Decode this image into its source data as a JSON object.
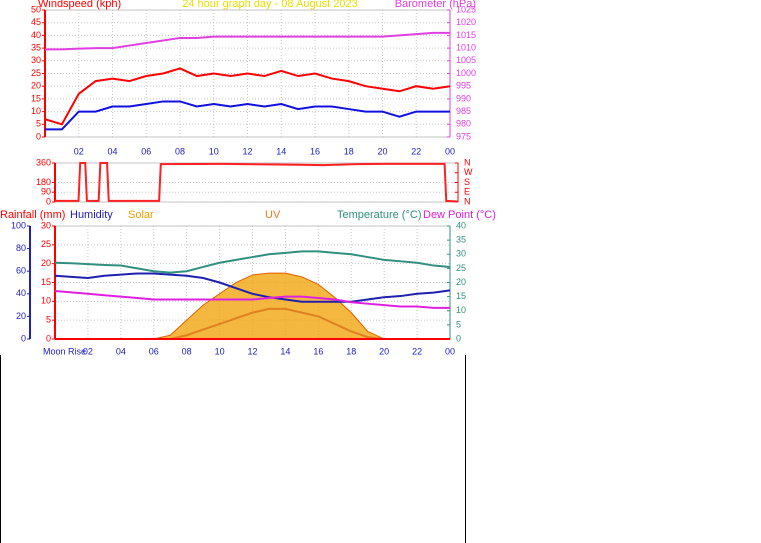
{
  "chart_data": [
    {
      "type": "line",
      "title": "24 hour graph day - 08 August 2023",
      "ylabel": "Windspeed (kph)",
      "y2label": "Barometer (hPa)",
      "ycolor": "#ff0000",
      "y2color": "#e040e0",
      "xcolor": "#2020c0",
      "grid": true,
      "x": [
        0,
        1,
        2,
        3,
        4,
        5,
        6,
        7,
        8,
        9,
        10,
        11,
        12,
        13,
        14,
        15,
        16,
        17,
        18,
        19,
        20,
        21,
        22,
        23,
        24
      ],
      "xlim": [
        0,
        24
      ],
      "xticks": [
        {
          "value": 2,
          "label": "02"
        },
        {
          "value": 4,
          "label": "04"
        },
        {
          "value": 6,
          "label": "06"
        },
        {
          "value": 8,
          "label": "08"
        },
        10,
        12,
        14,
        16,
        18,
        20,
        22,
        {
          "value": 24,
          "label": "00"
        }
      ],
      "ylim": [
        0,
        50
      ],
      "yticks": [
        0,
        5,
        10,
        15,
        20,
        25,
        30,
        35,
        40,
        45,
        50
      ],
      "y2lim": [
        975,
        1025
      ],
      "y2ticks": [
        975,
        980,
        985,
        990,
        995,
        1000,
        1005,
        1010,
        1015,
        1020,
        1025
      ],
      "series": [
        {
          "color": "#ff0000",
          "values": [
            7,
            5,
            17,
            22,
            23,
            22,
            24,
            25,
            27,
            24,
            25,
            24,
            25,
            24,
            26,
            24,
            25,
            23,
            22,
            20,
            19,
            18,
            20,
            19,
            20
          ]
        },
        {
          "color": "#1010e0",
          "values": [
            3,
            3,
            10,
            10,
            12,
            12,
            13,
            14,
            14,
            12,
            13,
            12,
            13,
            12,
            13,
            11,
            12,
            12,
            11,
            10,
            10,
            8,
            10,
            10,
            10
          ]
        },
        {
          "color": "#e040e0",
          "axis": "y2",
          "values": [
            1009.5,
            1009.5,
            1009.8,
            1010,
            1010,
            1011,
            1012,
            1013,
            1014,
            1014,
            1014.5,
            1014.5,
            1014.5,
            1014.5,
            1014.5,
            1014.5,
            1014.5,
            1014.5,
            1014.5,
            1014.5,
            1014.5,
            1015,
            1015.5,
            1016,
            1016
          ]
        }
      ]
    },
    {
      "type": "line",
      "ycolor": "#ff0000",
      "y2color": "#ff0000",
      "grid": true,
      "x": [
        0,
        1.4,
        1.5,
        1.8,
        1.9,
        2.6,
        2.7,
        3.1,
        3.2,
        6.2,
        6.3,
        10,
        14,
        16,
        18,
        20,
        23.2,
        23.3,
        24
      ],
      "xlim": [
        0,
        24
      ],
      "ylim": [
        0,
        360
      ],
      "yticks": [
        0,
        90,
        180,
        360
      ],
      "y2lim": [
        0,
        360
      ],
      "y2ticks": [
        {
          "value": 360,
          "label": "N"
        },
        {
          "value": 270,
          "label": "W"
        },
        {
          "value": 180,
          "label": "S"
        },
        {
          "value": 90,
          "label": "E"
        },
        {
          "value": 0,
          "label": "N"
        }
      ],
      "series": [
        {
          "color": "#ff2020",
          "values": [
            10,
            10,
            360,
            360,
            10,
            10,
            360,
            360,
            10,
            10,
            350,
            352,
            345,
            340,
            350,
            352,
            352,
            10,
            5
          ]
        }
      ]
    },
    {
      "type": "line",
      "annotation": "Moon Rise",
      "ycolor": "#ff0000",
      "y2color": "#309080",
      "y3color": "#2020c0",
      "xcolor": "#2020c0",
      "grid": true,
      "x": [
        0,
        1,
        2,
        3,
        4,
        5,
        6,
        7,
        8,
        9,
        10,
        11,
        12,
        13,
        14,
        15,
        16,
        17,
        18,
        19,
        20,
        21,
        22,
        23,
        24
      ],
      "xlim": [
        0,
        24
      ],
      "xticks": [
        {
          "value": 2,
          "label": "02"
        },
        {
          "value": 4,
          "label": "04"
        },
        {
          "value": 6,
          "label": "06"
        },
        {
          "value": 8,
          "label": "08"
        },
        10,
        12,
        14,
        16,
        18,
        20,
        22,
        {
          "value": 24,
          "label": "00"
        }
      ],
      "ylim": [
        0,
        30
      ],
      "yticks": [
        0,
        5,
        10,
        15,
        20,
        25,
        30
      ],
      "y2lim": [
        0,
        40
      ],
      "y2ticks": [
        0,
        5,
        10,
        15,
        20,
        25,
        30,
        35,
        40
      ],
      "y3lim": [
        0,
        100
      ],
      "y3ticks": [
        0,
        20,
        40,
        60,
        80,
        100
      ],
      "series": [
        {
          "name": "Solar",
          "color": "#f0a000",
          "fill": true,
          "values": [
            0,
            0,
            0,
            0,
            0,
            0,
            0,
            1,
            5,
            9,
            12,
            15,
            17,
            17.5,
            17.5,
            16.5,
            14.5,
            11,
            7,
            2,
            0,
            0,
            0,
            0,
            0
          ]
        },
        {
          "name": "UV",
          "color": "#e08020",
          "values": [
            0,
            0,
            0,
            0,
            0,
            0,
            0,
            0,
            1,
            2.5,
            4,
            5.5,
            7,
            8,
            8,
            7,
            6,
            4,
            2,
            0.5,
            0,
            0,
            0,
            0,
            0
          ]
        },
        {
          "name": "Rainfall (mm)",
          "color": "#ff0000",
          "values": [
            0,
            0,
            0,
            0,
            0,
            0,
            0,
            0,
            0,
            0,
            0,
            0,
            0,
            0,
            0,
            0,
            0,
            0,
            0,
            0,
            0,
            0,
            0,
            0,
            0
          ]
        },
        {
          "name": "Humidity",
          "color": "#2020b0",
          "axis": "y3",
          "values": [
            56,
            55,
            54,
            56,
            57,
            58,
            58,
            57,
            56,
            54,
            50,
            45,
            40,
            37,
            35,
            33,
            33,
            33,
            33,
            35,
            37,
            38,
            40,
            41,
            43
          ]
        },
        {
          "name": "Temperature (°C)",
          "color": "#309080",
          "axis": "y2",
          "values": [
            27,
            26.8,
            26.5,
            26.2,
            26,
            25,
            24,
            23.5,
            24,
            25.5,
            27,
            28,
            29,
            30,
            30.5,
            31,
            31,
            30.5,
            30,
            29,
            28,
            27.5,
            27,
            26,
            25.5
          ]
        },
        {
          "name": "Dew Point (°C)",
          "color": "#e020e0",
          "axis": "y2",
          "values": [
            17,
            16.5,
            16,
            15.5,
            15,
            14.5,
            14,
            14,
            14,
            14,
            14,
            14,
            14,
            14.5,
            15,
            15,
            14.5,
            14,
            13,
            12.5,
            12,
            11.5,
            11.5,
            11,
            11
          ]
        }
      ]
    }
  ]
}
